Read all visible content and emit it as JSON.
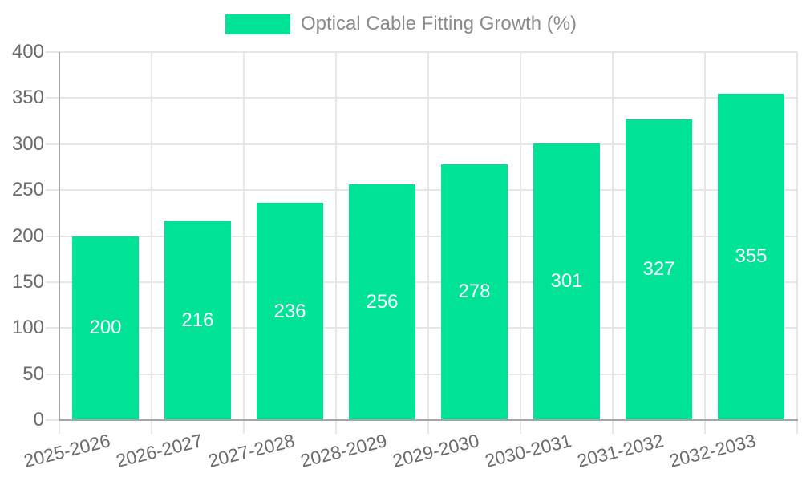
{
  "legend": {
    "label": "Optical Cable Fitting Growth (%)"
  },
  "chart_data": {
    "type": "bar",
    "title": "Optical Cable Fitting Growth (%)",
    "categories": [
      "2025-2026",
      "2026-2027",
      "2027-2028",
      "2028-2029",
      "2029-2030",
      "2030-2031",
      "2031-2032",
      "2032-2033"
    ],
    "series": [
      {
        "name": "Optical Cable Fitting Growth (%)",
        "values": [
          200,
          216,
          236,
          256,
          278,
          301,
          327,
          355
        ]
      }
    ],
    "values": [
      200,
      216,
      236,
      256,
      278,
      301,
      327,
      355
    ],
    "xlabel": "",
    "ylabel": "",
    "ylim": [
      0,
      400
    ],
    "ytick_step": 50,
    "yticks": [
      0,
      50,
      100,
      150,
      200,
      250,
      300,
      350,
      400
    ],
    "grid": true,
    "legend_position": "top-center",
    "value_label_position": "inside-center",
    "x_label_rotation_deg": -14,
    "colors": {
      "bar": "#00E396",
      "value_label": "#FFFFFF",
      "axis_text": "#6B6B6B",
      "legend_text": "#8A8A8A",
      "gridline": "#E6E6E6",
      "axis_line": "#A5A5A5",
      "background": "#FFFFFF"
    }
  }
}
